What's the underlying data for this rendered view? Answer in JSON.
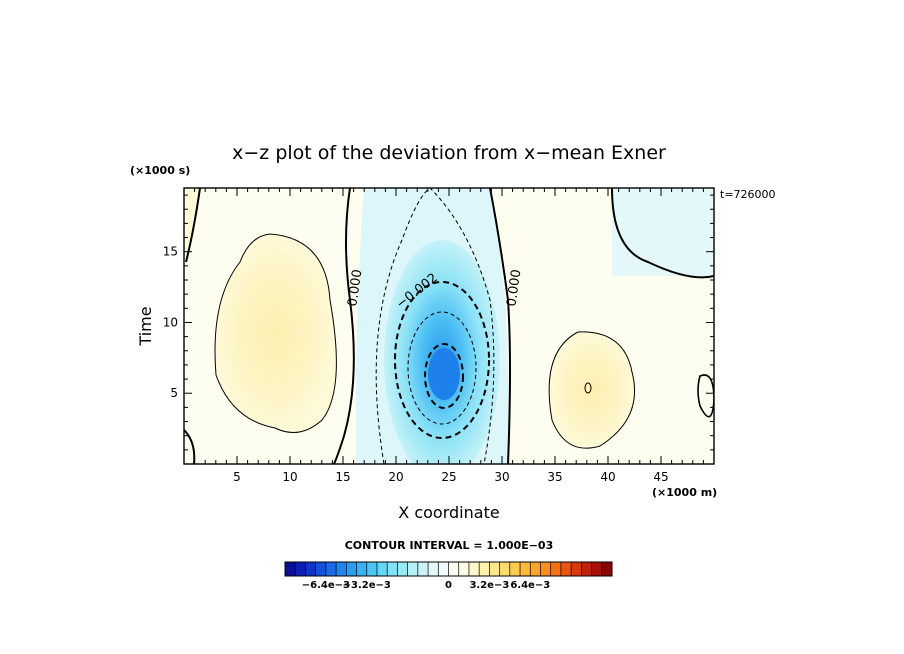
{
  "chart_data": {
    "type": "heatmap",
    "title": "x−z plot of the deviation from x−mean Exner",
    "xlabel": "X coordinate",
    "ylabel": "Time",
    "x_unit": "(×1000 m)",
    "y_unit": "(×1000 s)",
    "annotation_time": "t=726000",
    "xlim": [
      0,
      50
    ],
    "ylim": [
      0,
      19.5
    ],
    "x_ticks": [
      "5",
      "10",
      "15",
      "20",
      "25",
      "30",
      "35",
      "40",
      "45"
    ],
    "y_ticks": [
      "5",
      "10",
      "15"
    ],
    "contour_labels": [
      {
        "text": "0.000",
        "x": 16.5,
        "y": 12.4
      },
      {
        "text": "−0.002",
        "x": 22.2,
        "y": 12.0
      },
      {
        "text": "0.000",
        "x": 31.5,
        "y": 12.4
      }
    ],
    "colorbar": {
      "interval_text": "CONTOUR INTERVAL = 1.000E−03",
      "tick_labels": [
        "−6.4e−3",
        "−3.2e−3",
        "0",
        "3.2e−3",
        "6.4e−3"
      ],
      "colors": [
        "#0a0f96",
        "#0c1fb0",
        "#0f35c8",
        "#1450dc",
        "#1a6aea",
        "#2085f0",
        "#2a9cf2",
        "#38b2f4",
        "#4cc6f6",
        "#64d6f6",
        "#80e2f6",
        "#9aeaf6",
        "#b4f0f8",
        "#ccf4f8",
        "#e2f8fa",
        "#f2fbfb",
        "#fefef2",
        "#fefce2",
        "#fef8c8",
        "#fef2aa",
        "#fee88a",
        "#fedc6c",
        "#fecc50",
        "#feb83a",
        "#fea428",
        "#fe8c1c",
        "#f67014",
        "#ea5410",
        "#d8380c",
        "#c2200a",
        "#a81008",
        "#8a0605"
      ]
    }
  }
}
